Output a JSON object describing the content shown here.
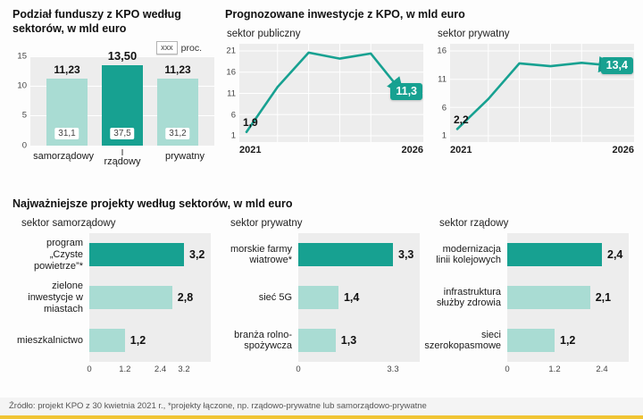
{
  "colors": {
    "dark_teal": "#17a191",
    "light_teal": "#a9dcd3",
    "panel": "#ededed",
    "bottom_bar": "#f0c433"
  },
  "footer": {
    "source": "Źródło: projekt KPO z 30 kwietnia 2021 r., *projekty łączone, np. rządowo-prywatne lub samorządowo-prywatne"
  },
  "chart_data": [
    {
      "type": "bar",
      "title_bold": "Podział funduszy z KPO według sektorów,",
      "title_rest": " w mld euro",
      "legend_box": "xxx",
      "legend_unit": "proc.",
      "categories": [
        "samorządowy",
        "rządowy",
        "prywatny"
      ],
      "values": [
        11.23,
        13.5,
        11.23
      ],
      "value_labels": [
        "11,23",
        "13,50",
        "11,23"
      ],
      "percent_labels": [
        "31,1",
        "37,5",
        "31,2"
      ],
      "yticks": [
        15,
        10,
        5,
        0
      ],
      "ylim": [
        0,
        15
      ],
      "highlight_index": 1
    },
    {
      "type": "line",
      "group_title_bold": "Prognozowane inwestycje z KPO,",
      "group_title_rest": " w mld euro",
      "subtitle": "sektor publiczny",
      "x": [
        2021,
        2022,
        2023,
        2024,
        2025,
        2026
      ],
      "values": [
        1.9,
        12.5,
        20.6,
        19.2,
        20.4,
        11.3
      ],
      "start_label": "1,9",
      "end_label": "11,3",
      "yticks": [
        21,
        16,
        11,
        6,
        1
      ],
      "ylim": [
        1,
        21
      ],
      "xticks": [
        "2021",
        "2026"
      ]
    },
    {
      "type": "line",
      "subtitle": "sektor prywatny",
      "x": [
        2021,
        2022,
        2023,
        2024,
        2025,
        2026
      ],
      "values": [
        2.2,
        7.5,
        13.8,
        13.3,
        13.9,
        13.4
      ],
      "start_label": "2,2",
      "end_label": "13,4",
      "yticks": [
        16,
        11,
        6,
        1
      ],
      "ylim": [
        1,
        16
      ],
      "xticks": [
        "2021",
        "2026"
      ]
    },
    {
      "type": "hbar",
      "group_title_bold": "Najważniejsze projekty według sektorów,",
      "group_title_rest": " w mld euro",
      "subtitle": "sektor samorządowy",
      "categories": [
        "program „Czyste powietrze”*",
        "zielone inwestycje w miastach",
        "mieszkalnictwo"
      ],
      "values": [
        3.2,
        2.8,
        1.2
      ],
      "value_labels": [
        "3,2",
        "2,8",
        "1,2"
      ],
      "xticks": [
        "0",
        "1.2",
        "2.4",
        "3.2"
      ],
      "xlim": [
        0,
        3.2
      ],
      "highlight_index": 0
    },
    {
      "type": "hbar",
      "subtitle": "sektor prywatny",
      "categories": [
        "morskie farmy wiatrowe*",
        "sieć 5G",
        "branża rolno-spożywcza"
      ],
      "values": [
        3.3,
        1.4,
        1.3
      ],
      "value_labels": [
        "3,3",
        "1,4",
        "1,3"
      ],
      "xticks": [
        "0",
        "3.3"
      ],
      "xlim": [
        0,
        3.3
      ],
      "highlight_index": 0
    },
    {
      "type": "hbar",
      "subtitle": "sektor rządowy",
      "categories": [
        "modernizacja linii kolejowych",
        "infrastruktura służby zdrowia",
        "sieci szerokopasmowe"
      ],
      "values": [
        2.4,
        2.1,
        1.2
      ],
      "value_labels": [
        "2,4",
        "2,1",
        "1,2"
      ],
      "xticks": [
        "0",
        "1.2",
        "2.4"
      ],
      "xlim": [
        0,
        2.4
      ],
      "highlight_index": 0
    }
  ]
}
